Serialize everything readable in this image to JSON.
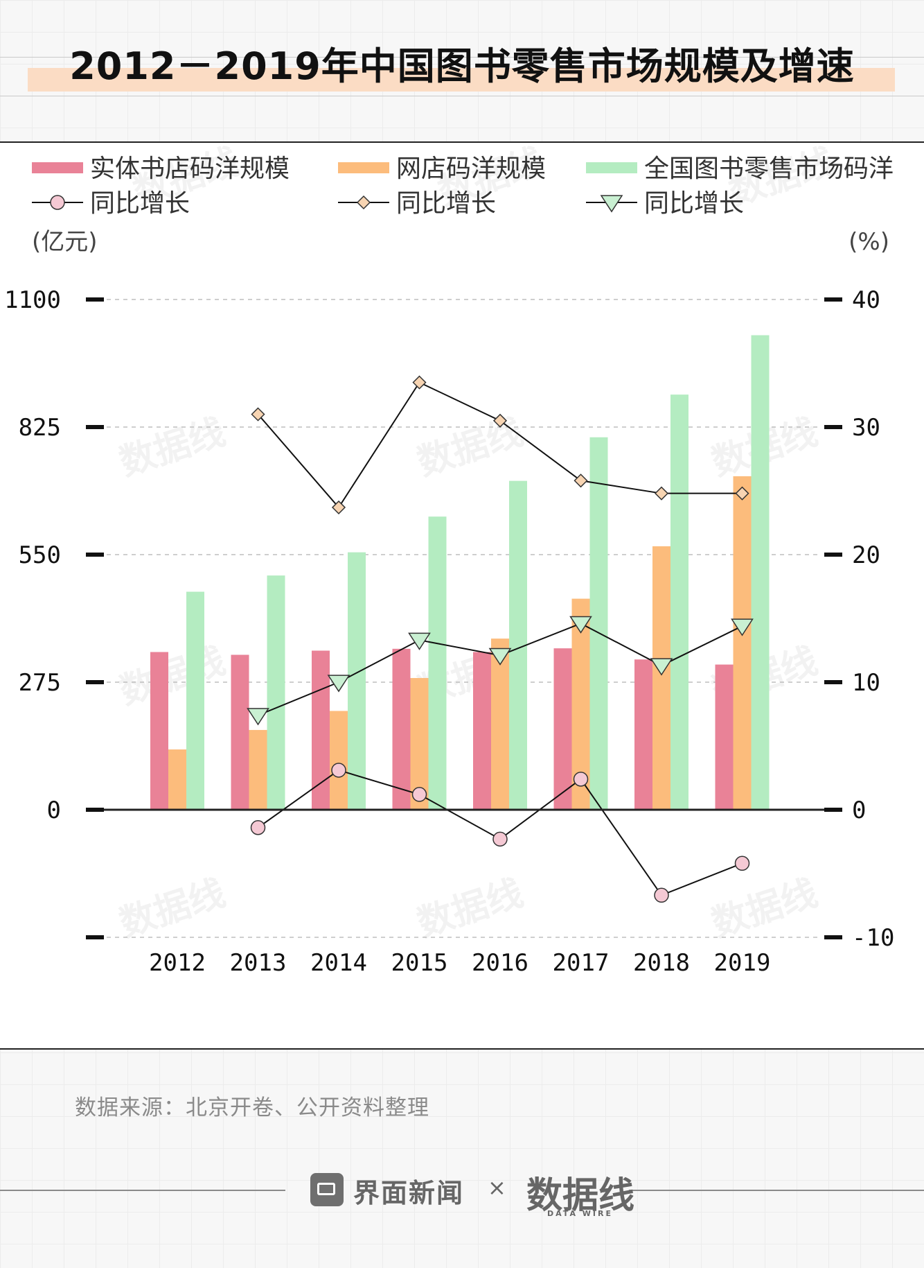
{
  "page": {
    "title": "2012－2019年中国图书零售市场规模及增速",
    "source": "数据来源：北京开卷、公开资料整理",
    "brand": {
      "name": "界面新闻",
      "separator": "×",
      "logo_text": "数据线",
      "logo_sub": "DATA WIRE"
    },
    "watermark": "数据线"
  },
  "legend": {
    "items": [
      {
        "label": "实体书店码洋规模",
        "type": "bar",
        "color": "#e98297"
      },
      {
        "label": "网店码洋规模",
        "type": "bar",
        "color": "#fcbc7c"
      },
      {
        "label": "全国图书零售市场码洋",
        "type": "bar",
        "color": "#b4ecc1"
      },
      {
        "label": "同比增长",
        "type": "line-circle",
        "color": "#f5c9d4"
      },
      {
        "label": "同比增长",
        "type": "line-diamond",
        "color": "#f7d4b2"
      },
      {
        "label": "同比增长",
        "type": "line-triangle",
        "color": "#c9f0d2"
      }
    ]
  },
  "chart_data": {
    "type": "bar",
    "categories": [
      "2012",
      "2013",
      "2014",
      "2015",
      "2016",
      "2017",
      "2018",
      "2019"
    ],
    "ylabel": "(亿元)",
    "y2label": "(%)",
    "ylim": [
      -275,
      1100
    ],
    "y2lim": [
      -10,
      40
    ],
    "yticks": [
      "1100",
      "825",
      "550",
      "275",
      "0",
      ""
    ],
    "y2ticks": [
      "40",
      "30",
      "20",
      "10",
      "0",
      "-10"
    ],
    "series": [
      {
        "name": "实体书店码洋规模",
        "type": "bar",
        "axis": "left",
        "color": "#e98297",
        "values": [
          340,
          334,
          343,
          347,
          340,
          348,
          324,
          313
        ]
      },
      {
        "name": "网店码洋规模",
        "type": "bar",
        "axis": "left",
        "color": "#fcbc7c",
        "values": [
          130,
          172,
          213,
          284,
          369,
          455,
          568,
          719
        ]
      },
      {
        "name": "全国图书零售市场码洋",
        "type": "bar",
        "axis": "left",
        "color": "#b4ecc1",
        "values": [
          470,
          505,
          555,
          632,
          709,
          803,
          895,
          1023
        ]
      },
      {
        "name": "同比增长",
        "type": "line",
        "marker": "circle",
        "axis": "right",
        "color": "#f5c9d4",
        "values": [
          null,
          -1.4,
          3.1,
          1.2,
          -2.3,
          2.4,
          -6.7,
          -4.2
        ]
      },
      {
        "name": "同比增长",
        "type": "line",
        "marker": "diamond",
        "axis": "right",
        "color": "#f7d4b2",
        "values": [
          null,
          31.0,
          23.7,
          33.5,
          30.5,
          25.8,
          24.8,
          24.8
        ]
      },
      {
        "name": "同比增长",
        "type": "line",
        "marker": "triangle",
        "axis": "right",
        "color": "#c9f0d2",
        "values": [
          null,
          7.4,
          10.0,
          13.3,
          12.1,
          14.6,
          11.3,
          14.4
        ]
      }
    ],
    "grid": "dashed horizontal",
    "legend_position": "top"
  }
}
